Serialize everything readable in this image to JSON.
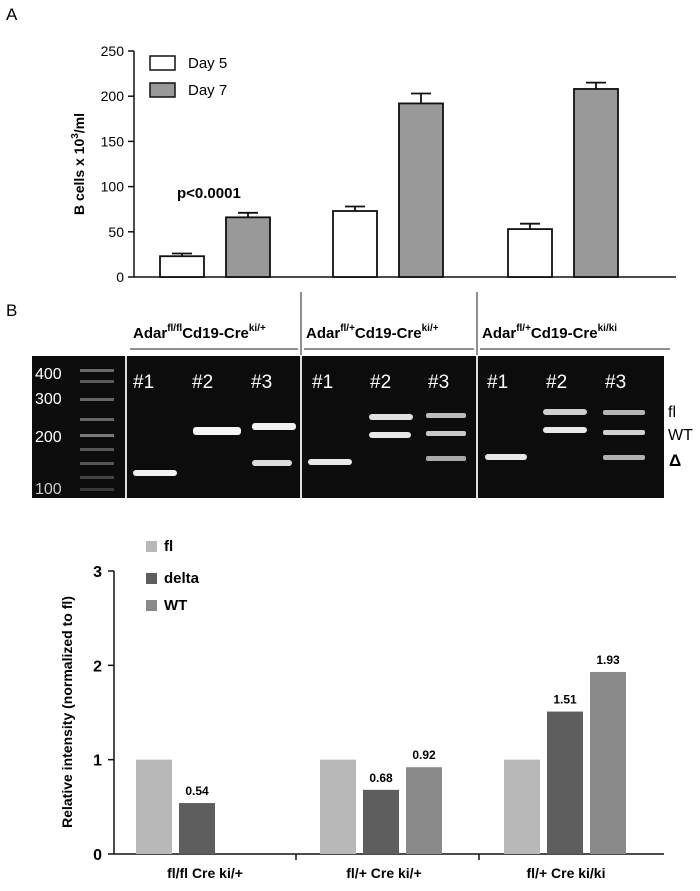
{
  "panel_labels": {
    "a": "A",
    "b": "B"
  },
  "chart_data": [
    {
      "type": "bar",
      "ylabel_main": "B cells x 10",
      "ylabel_sup": "3",
      "ylabel_tail": "/ml",
      "ylim": [
        0,
        250
      ],
      "yticks": [
        0,
        50,
        100,
        150,
        200,
        250
      ],
      "groups": 3,
      "series": [
        {
          "name": "Day 5",
          "color": "#ffffff",
          "values": [
            23,
            73,
            53
          ],
          "errors": [
            3,
            5,
            6
          ]
        },
        {
          "name": "Day 7",
          "color": "#999999",
          "values": [
            66,
            192,
            208
          ],
          "errors": [
            5,
            11,
            7
          ]
        }
      ],
      "annotation": "p<0.0001",
      "legend_position": "top-left"
    },
    {
      "type": "bar",
      "ylabel": "Relative intensity (normalized to fl)",
      "ylim": [
        0,
        3
      ],
      "yticks": [
        0,
        1,
        2,
        3
      ],
      "categories": [
        "fl/fl Cre ki/+",
        "fl/+ Cre ki/+",
        "fl/+ Cre ki/ki"
      ],
      "series": [
        {
          "name": "fl",
          "color": "#b8b8b8",
          "values": [
            1,
            1,
            1
          ]
        },
        {
          "name": "delta",
          "color": "#5e5e5e",
          "values": [
            0.54,
            0.68,
            1.51
          ]
        },
        {
          "name": "WT",
          "color": "#8a8a8a",
          "values": [
            null,
            0.92,
            1.93
          ]
        }
      ],
      "value_labels": [
        [
          "",
          "0.54",
          ""
        ],
        [
          "",
          "0.68",
          "0.92"
        ],
        [
          "",
          "1.51",
          "1.93"
        ]
      ],
      "legend_position": "top-left"
    }
  ],
  "gel": {
    "groups": [
      {
        "base": "Adar",
        "sup1": "fl/fl",
        "mid": "Cd19-Cre",
        "sup2": "ki/+"
      },
      {
        "base": "Adar",
        "sup1": "fl/+",
        "mid": "Cd19-Cre",
        "sup2": "ki/+"
      },
      {
        "base": "Adar",
        "sup1": "fl/+",
        "mid": "Cd19-Cre",
        "sup2": "ki/ki"
      }
    ],
    "lane_labels": [
      "#1",
      "#2",
      "#3",
      "#1",
      "#2",
      "#3",
      "#1",
      "#2",
      "#3"
    ],
    "ladder_labels": [
      "400",
      "300",
      "200",
      "100"
    ],
    "band_labels": [
      "fl",
      "WT",
      "Δ"
    ]
  }
}
